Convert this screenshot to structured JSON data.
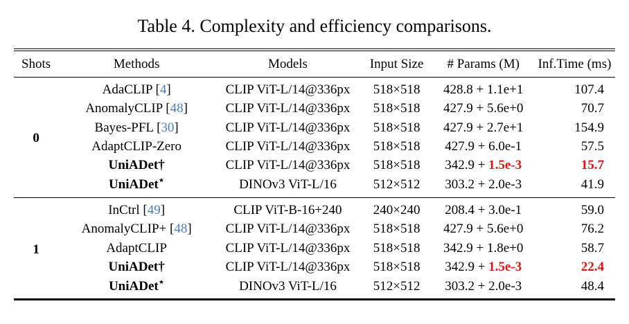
{
  "title": "Table 4. Complexity and efficiency comparisons.",
  "columns": {
    "shots": "Shots",
    "methods": "Methods",
    "models": "Models",
    "input_size": "Input Size",
    "params": "# Params (M)",
    "inf_time": "Inf.Time (ms)"
  },
  "colors": {
    "citation_blue": "#4a7fbf",
    "highlight_red": "#e01414",
    "text": "#000000",
    "background": "#ffffff"
  },
  "groups": [
    {
      "shots": "0",
      "rows": [
        {
          "method_pre": "AdaCLIP [",
          "method_sup": "",
          "cite": "4",
          "method_post": "]",
          "model": "CLIP ViT-L/14@336px",
          "input_size": "518×518",
          "params_pre": "428.8 + 1.1e+1",
          "params_hl": "",
          "time": "107.4"
        },
        {
          "method_pre": "AnomalyCLIP [",
          "method_sup": "",
          "cite": "48",
          "method_post": "]",
          "model": "CLIP ViT-L/14@336px",
          "input_size": "518×518",
          "params_pre": "427.9 + 5.6e+0",
          "params_hl": "",
          "time": "70.7"
        },
        {
          "method_pre": "Bayes-PFL [",
          "method_sup": "",
          "cite": "30",
          "method_post": "]",
          "model": "CLIP ViT-L/14@336px",
          "input_size": "518×518",
          "params_pre": "427.9 + 2.7e+1",
          "params_hl": "",
          "time": "154.9"
        },
        {
          "method_pre": "AdaptCLIP-Zero",
          "method_sup": "",
          "cite": "",
          "method_post": "",
          "model": "CLIP ViT-L/14@336px",
          "input_size": "518×518",
          "params_pre": "427.9 + 6.0e-1",
          "params_hl": "",
          "time": "57.5"
        },
        {
          "method_pre": "UniADet†",
          "method_sup": "",
          "cite": "",
          "method_post": "",
          "model": "CLIP ViT-L/14@336px",
          "input_size": "518×518",
          "params_pre": "342.9 + ",
          "params_hl": "1.5e-3",
          "time": "15.7"
        },
        {
          "method_pre": "UniADet",
          "method_sup": "⋆",
          "cite": "",
          "method_post": "",
          "model": "DINOv3 ViT-L/16",
          "input_size": "512×512",
          "params_pre": "303.2 + 2.0e-3",
          "params_hl": "",
          "time": "41.9"
        }
      ]
    },
    {
      "shots": "1",
      "rows": [
        {
          "method_pre": "InCtrl [",
          "method_sup": "",
          "cite": "49",
          "method_post": "]",
          "model": "CLIP ViT-B-16+240",
          "input_size": "240×240",
          "params_pre": "208.4 + 3.0e-1",
          "params_hl": "",
          "time": "59.0"
        },
        {
          "method_pre": "AnomalyCLIP+ [",
          "method_sup": "",
          "cite": "48",
          "method_post": "]",
          "model": "CLIP ViT-L/14@336px",
          "input_size": "518×518",
          "params_pre": "427.9 + 5.6e+0",
          "params_hl": "",
          "time": "76.2"
        },
        {
          "method_pre": "AdaptCLIP",
          "method_sup": "",
          "cite": "",
          "method_post": "",
          "model": "CLIP ViT-L/14@336px",
          "input_size": "518×518",
          "params_pre": "342.9 + 1.8e+0",
          "params_hl": "",
          "time": "58.7"
        },
        {
          "method_pre": "UniADet†",
          "method_sup": "",
          "cite": "",
          "method_post": "",
          "model": "CLIP ViT-L/14@336px",
          "input_size": "518×518",
          "params_pre": "342.9 + ",
          "params_hl": "1.5e-3",
          "time": "22.4"
        },
        {
          "method_pre": "UniADet",
          "method_sup": "⋆",
          "cite": "",
          "method_post": "",
          "model": "DINOv3 ViT-L/16",
          "input_size": "512×512",
          "params_pre": "303.2 + 2.0e-3",
          "params_hl": "",
          "time": "48.4"
        }
      ]
    }
  ]
}
